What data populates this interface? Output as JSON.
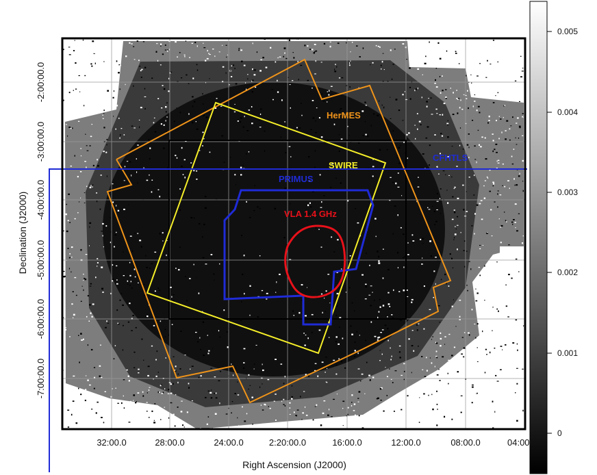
{
  "chart_data": {
    "type": "image",
    "xlabel": "Right Ascension (J2000)",
    "ylabel": "Declination (J2000)",
    "x_ticks": [
      "32:00.0",
      "28:00.0",
      "24:00.0",
      "2:20:00.0",
      "16:00.0",
      "12:00.0",
      "08:00.0",
      "04:00"
    ],
    "y_ticks": [
      "-2:00:00.0",
      "-3:00:00.0",
      "-4:00:00.0",
      "-5:00:00.0",
      "-6:00:00.0",
      "-7:00:00.0"
    ],
    "colorbar": {
      "colormap": "grayscale",
      "range": [
        -0.0005,
        0.0054
      ],
      "ticks": [
        "0.005",
        "0.004",
        "0.003",
        "0.002",
        "0.001",
        "0"
      ]
    },
    "grid": true,
    "regions": [
      {
        "name": "HerMES",
        "color": "#f0941a"
      },
      {
        "name": "SWIRE",
        "color": "#f5ee29"
      },
      {
        "name": "CFHTLS",
        "color": "#1f2bd6"
      },
      {
        "name": "PRIMUS",
        "color": "#1f2bd6"
      },
      {
        "name": "VLA 1.4 GHz",
        "color": "#e8111a"
      }
    ]
  }
}
